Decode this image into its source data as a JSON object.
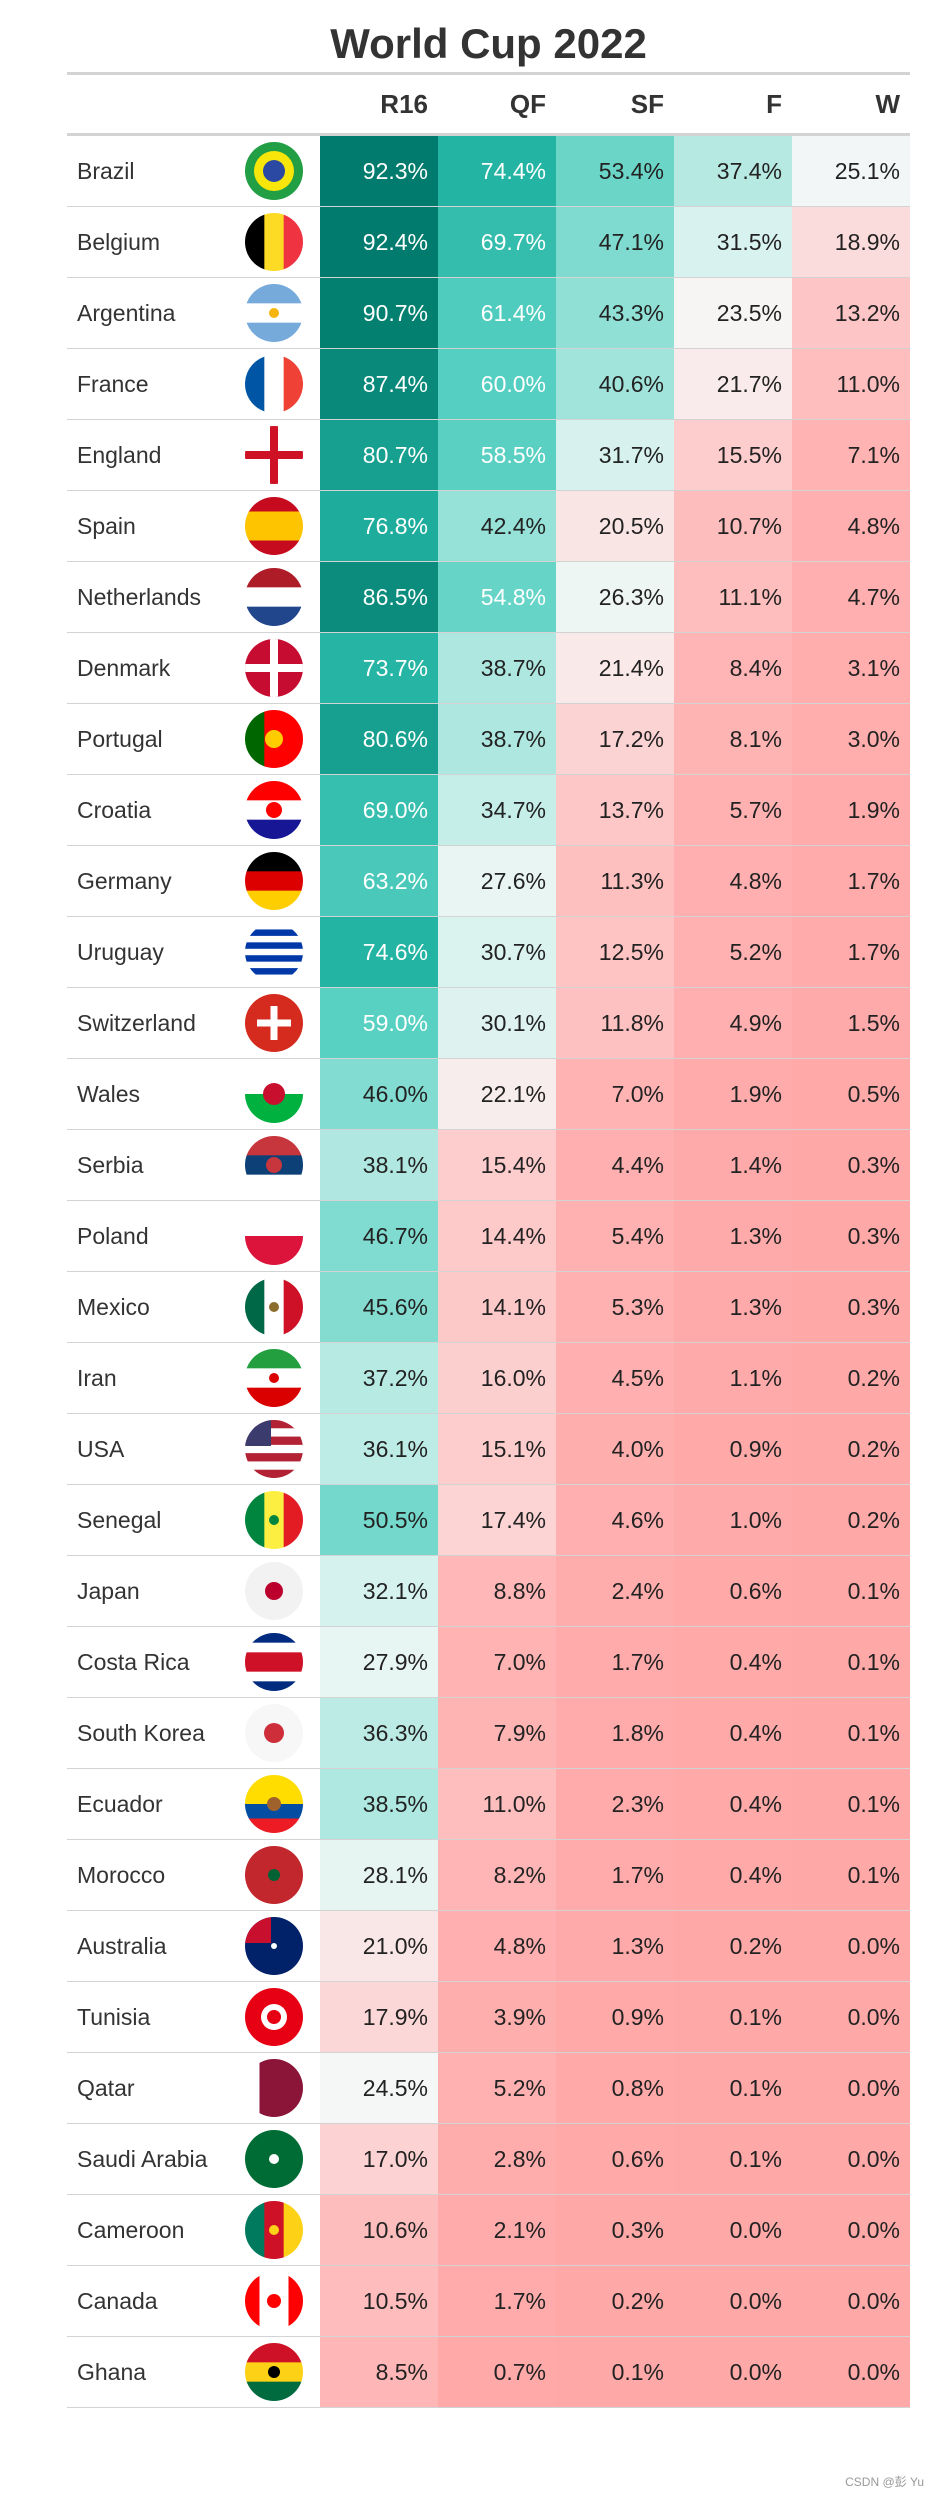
{
  "title": "World Cup 2022",
  "columns": [
    "R16",
    "QF",
    "SF",
    "F",
    "W"
  ],
  "rows": [
    [
      "Brazil",
      "92.3%",
      "74.4%",
      "53.4%",
      "37.4%",
      "25.1%"
    ],
    [
      "Belgium",
      "92.4%",
      "69.7%",
      "47.1%",
      "31.5%",
      "18.9%"
    ],
    [
      "Argentina",
      "90.7%",
      "61.4%",
      "43.3%",
      "23.5%",
      "13.2%"
    ],
    [
      "France",
      "87.4%",
      "60.0%",
      "40.6%",
      "21.7%",
      "11.0%"
    ],
    [
      "England",
      "80.7%",
      "58.5%",
      "31.7%",
      "15.5%",
      "7.1%"
    ],
    [
      "Spain",
      "76.8%",
      "42.4%",
      "20.5%",
      "10.7%",
      "4.8%"
    ],
    [
      "Netherlands",
      "86.5%",
      "54.8%",
      "26.3%",
      "11.1%",
      "4.7%"
    ],
    [
      "Denmark",
      "73.7%",
      "38.7%",
      "21.4%",
      "8.4%",
      "3.1%"
    ],
    [
      "Portugal",
      "80.6%",
      "38.7%",
      "17.2%",
      "8.1%",
      "3.0%"
    ],
    [
      "Croatia",
      "69.0%",
      "34.7%",
      "13.7%",
      "5.7%",
      "1.9%"
    ],
    [
      "Germany",
      "63.2%",
      "27.6%",
      "11.3%",
      "4.8%",
      "1.7%"
    ],
    [
      "Uruguay",
      "74.6%",
      "30.7%",
      "12.5%",
      "5.2%",
      "1.7%"
    ],
    [
      "Switzerland",
      "59.0%",
      "30.1%",
      "11.8%",
      "4.9%",
      "1.5%"
    ],
    [
      "Wales",
      "46.0%",
      "22.1%",
      "7.0%",
      "1.9%",
      "0.5%"
    ],
    [
      "Serbia",
      "38.1%",
      "15.4%",
      "4.4%",
      "1.4%",
      "0.3%"
    ],
    [
      "Poland",
      "46.7%",
      "14.4%",
      "5.4%",
      "1.3%",
      "0.3%"
    ],
    [
      "Mexico",
      "45.6%",
      "14.1%",
      "5.3%",
      "1.3%",
      "0.3%"
    ],
    [
      "Iran",
      "37.2%",
      "16.0%",
      "4.5%",
      "1.1%",
      "0.2%"
    ],
    [
      "USA",
      "36.1%",
      "15.1%",
      "4.0%",
      "0.9%",
      "0.2%"
    ],
    [
      "Senegal",
      "50.5%",
      "17.4%",
      "4.6%",
      "1.0%",
      "0.2%"
    ],
    [
      "Japan",
      "32.1%",
      "8.8%",
      "2.4%",
      "0.6%",
      "0.1%"
    ],
    [
      "Costa Rica",
      "27.9%",
      "7.0%",
      "1.7%",
      "0.4%",
      "0.1%"
    ],
    [
      "South Korea",
      "36.3%",
      "7.9%",
      "1.8%",
      "0.4%",
      "0.1%"
    ],
    [
      "Ecuador",
      "38.5%",
      "11.0%",
      "2.3%",
      "0.4%",
      "0.1%"
    ],
    [
      "Morocco",
      "28.1%",
      "8.2%",
      "1.7%",
      "0.4%",
      "0.1%"
    ],
    [
      "Australia",
      "21.0%",
      "4.8%",
      "1.3%",
      "0.2%",
      "0.0%"
    ],
    [
      "Tunisia",
      "17.9%",
      "3.9%",
      "0.9%",
      "0.1%",
      "0.0%"
    ],
    [
      "Qatar",
      "24.5%",
      "5.2%",
      "0.8%",
      "0.1%",
      "0.0%"
    ],
    [
      "Saudi Arabia",
      "17.0%",
      "2.8%",
      "0.6%",
      "0.1%",
      "0.0%"
    ],
    [
      "Cameroon",
      "10.6%",
      "2.1%",
      "0.3%",
      "0.0%",
      "0.0%"
    ],
    [
      "Canada",
      "10.5%",
      "1.7%",
      "0.2%",
      "0.0%",
      "0.0%"
    ],
    [
      "Ghana",
      "8.5%",
      "0.7%",
      "0.1%",
      "0.0%",
      "0.0%"
    ]
  ],
  "watermark": "CSDN @彭 Yu"
}
